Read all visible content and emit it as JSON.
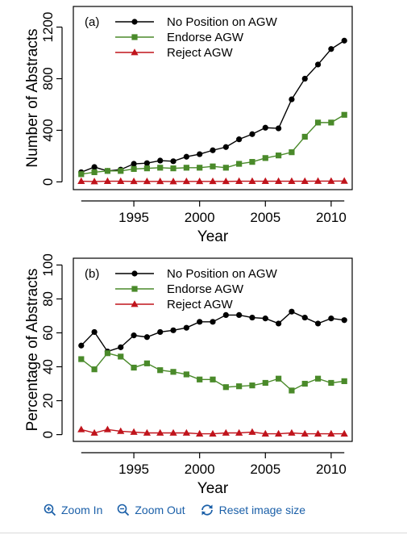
{
  "chart_data": [
    {
      "type": "line",
      "panel_label": "(a)",
      "xlabel": "Year",
      "ylabel": "Number of Abstracts",
      "xlim": [
        1990.4,
        1991.4
      ],
      "ylim": [
        -60,
        1360
      ],
      "xticks": [
        1995,
        2000,
        2005,
        2010
      ],
      "yticks": [
        0,
        400,
        800,
        1200
      ],
      "grid": false,
      "legend_position": "top-left",
      "x": [
        1991,
        1992,
        1993,
        1994,
        1995,
        1996,
        1997,
        1998,
        1999,
        2000,
        2001,
        2002,
        2003,
        2004,
        2005,
        2006,
        2007,
        2008,
        2009,
        2010,
        2011
      ],
      "series": [
        {
          "name": "No Position on AGW",
          "color": "#000000",
          "marker": "circle",
          "values": [
            75,
            115,
            85,
            95,
            140,
            145,
            165,
            160,
            195,
            215,
            245,
            270,
            330,
            370,
            420,
            415,
            640,
            800,
            910,
            1030,
            1095
          ]
        },
        {
          "name": "Endorse AGW",
          "color": "#4a8a2a",
          "marker": "square",
          "values": [
            60,
            75,
            85,
            85,
            100,
            105,
            110,
            105,
            110,
            110,
            120,
            110,
            140,
            155,
            185,
            205,
            230,
            350,
            460,
            460,
            520
          ]
        },
        {
          "name": "Reject AGW",
          "color": "#c0141c",
          "marker": "triangle",
          "values": [
            5,
            3,
            5,
            5,
            4,
            4,
            4,
            3,
            4,
            4,
            4,
            4,
            5,
            5,
            5,
            5,
            5,
            5,
            6,
            6,
            7
          ]
        }
      ]
    },
    {
      "type": "line",
      "panel_label": "(b)",
      "xlabel": "Year",
      "ylabel": "Percentage of Abstracts",
      "xlim": [
        1990.4,
        2011.6
      ],
      "ylim": [
        -4,
        104
      ],
      "xticks": [
        1995,
        2000,
        2005,
        2010
      ],
      "yticks": [
        0,
        20,
        40,
        60,
        80,
        100
      ],
      "grid": false,
      "legend_position": "top-left",
      "x": [
        1991,
        1992,
        1993,
        1994,
        1995,
        1996,
        1997,
        1998,
        1999,
        2000,
        2001,
        2002,
        2003,
        2004,
        2005,
        2006,
        2007,
        2008,
        2009,
        2010,
        2011
      ],
      "series": [
        {
          "name": "No Position on AGW",
          "color": "#000000",
          "marker": "circle",
          "values": [
            52.5,
            60.5,
            49,
            51.5,
            58.5,
            57.5,
            60.5,
            61.5,
            63,
            66.5,
            66.5,
            70.5,
            70.5,
            69,
            68.5,
            65.5,
            72.5,
            69,
            65.5,
            68.5,
            67.5
          ]
        },
        {
          "name": "Endorse AGW",
          "color": "#4a8a2a",
          "marker": "square",
          "values": [
            44.5,
            38.5,
            48,
            46,
            39.5,
            42,
            38,
            37,
            35.5,
            32.5,
            32.5,
            28,
            28.5,
            29,
            30.5,
            33,
            26,
            30,
            33,
            30.5,
            31.5
          ]
        },
        {
          "name": "Reject AGW",
          "color": "#c0141c",
          "marker": "triangle",
          "values": [
            3,
            1,
            3,
            2,
            1.5,
            1,
            1,
            1,
            1,
            0.5,
            0.5,
            1,
            1,
            1.5,
            0.5,
            0.5,
            1,
            0.5,
            0.5,
            0.5,
            0.5
          ]
        }
      ]
    }
  ],
  "toolbar": {
    "zoom_in_label": "Zoom In",
    "zoom_out_label": "Zoom Out",
    "reset_label": "Reset image size",
    "zoom_in_icon": "zoom-in-magnifier-icon",
    "zoom_out_icon": "zoom-out-magnifier-icon",
    "reset_icon": "reset-arrows-icon",
    "color": "#1a5fa8"
  }
}
